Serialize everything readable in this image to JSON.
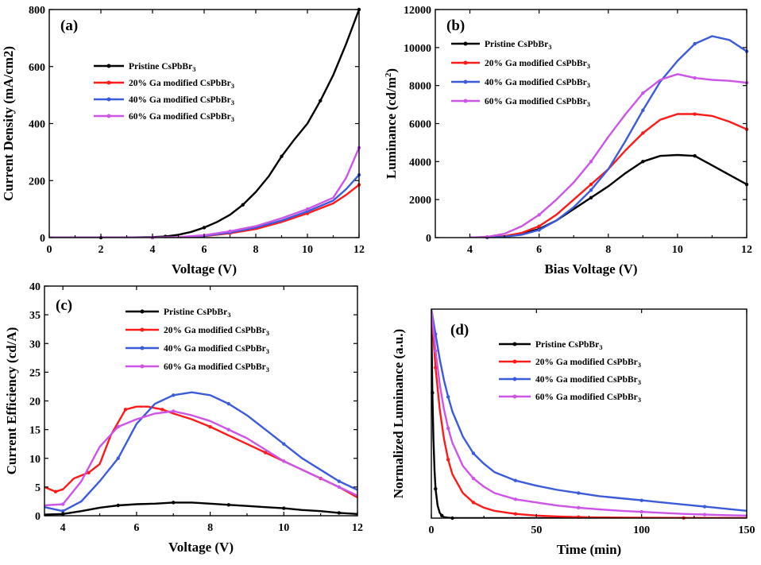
{
  "colors": {
    "pristine": "#000000",
    "ga20": "#ff1a1a",
    "ga40": "#3b5bdb",
    "ga60": "#cc55e8"
  },
  "chart_data": [
    {
      "id": "a",
      "type": "line",
      "panel_label": "(a)",
      "xlabel": "Voltage (V)",
      "ylabel": "Current Density (mA/cm2)",
      "xlim": [
        0,
        12
      ],
      "ylim": [
        0,
        800
      ],
      "xticks": [
        0,
        2,
        4,
        6,
        8,
        10,
        12
      ],
      "yticks": [
        0,
        200,
        400,
        600,
        800
      ],
      "xtick_labels": [
        "0",
        "2",
        "4",
        "6",
        "8",
        "10",
        "12"
      ],
      "ytick_labels": [
        "0",
        "200",
        "400",
        "600",
        "800"
      ],
      "legend": {
        "placement": "upper-left"
      },
      "series": [
        {
          "name_main": "Pristine CsPbBr",
          "name_sub": "3",
          "color_key": "pristine",
          "x": [
            0,
            2,
            3,
            4,
            4.5,
            5,
            5.5,
            6,
            6.5,
            7,
            7.5,
            8,
            8.5,
            9,
            9.5,
            10,
            10.5,
            11,
            11.5,
            12
          ],
          "y": [
            0,
            0,
            0.5,
            2,
            4,
            10,
            20,
            35,
            55,
            80,
            115,
            160,
            215,
            285,
            345,
            400,
            480,
            570,
            680,
            800
          ]
        },
        {
          "name_main": "20% Ga modified CsPbBr",
          "name_sub": "3",
          "color_key": "ga20",
          "x": [
            0,
            4,
            5,
            6,
            7,
            8,
            9,
            10,
            11,
            11.5,
            12
          ],
          "y": [
            0,
            0,
            1,
            5,
            15,
            30,
            55,
            85,
            120,
            150,
            185
          ]
        },
        {
          "name_main": "40% Ga modified CsPbBr",
          "name_sub": "3",
          "color_key": "ga40",
          "x": [
            0,
            4,
            5,
            6,
            7,
            8,
            9,
            10,
            11,
            11.5,
            12
          ],
          "y": [
            0,
            0,
            1,
            6,
            18,
            35,
            60,
            92,
            130,
            170,
            220
          ]
        },
        {
          "name_main": "60% Ga modified CsPbBr",
          "name_sub": "3",
          "color_key": "ga60",
          "x": [
            0,
            4,
            5,
            6,
            7,
            8,
            9,
            10,
            11,
            11.5,
            12
          ],
          "y": [
            0,
            0,
            2,
            8,
            22,
            40,
            68,
            100,
            140,
            210,
            315
          ]
        }
      ]
    },
    {
      "id": "b",
      "type": "line",
      "panel_label": "(b)",
      "xlabel": "Bias Voltage (V)",
      "ylabel_main": "Luminance (cd/m",
      "ylabel_sup": "2",
      "ylabel_tail": ")",
      "xlim": [
        3,
        12
      ],
      "ylim": [
        0,
        12000
      ],
      "xticks": [
        4,
        6,
        8,
        10,
        12
      ],
      "yticks": [
        0,
        2000,
        4000,
        6000,
        8000,
        10000,
        12000
      ],
      "xtick_labels": [
        "4",
        "6",
        "8",
        "10",
        "12"
      ],
      "ytick_labels": [
        "0",
        "2000",
        "4000",
        "6000",
        "8000",
        "10000",
        "12000"
      ],
      "legend": {
        "placement": "upper-left"
      },
      "series": [
        {
          "name_main": "Pristine CsPbBr",
          "name_sub": "3",
          "color_key": "pristine",
          "x": [
            4,
            4.5,
            5,
            5.5,
            6,
            6.5,
            7,
            7.5,
            8,
            8.5,
            9,
            9.5,
            10,
            10.5,
            11,
            11.5,
            12
          ],
          "y": [
            0,
            10,
            60,
            200,
            450,
            900,
            1500,
            2100,
            2700,
            3400,
            4000,
            4300,
            4350,
            4300,
            3800,
            3300,
            2800
          ]
        },
        {
          "name_main": "20% Ga modified CsPbBr",
          "name_sub": "3",
          "color_key": "ga20",
          "x": [
            4,
            4.5,
            5,
            5.5,
            6,
            6.5,
            7,
            7.5,
            8,
            8.5,
            9,
            9.5,
            10,
            10.5,
            11,
            11.5,
            12
          ],
          "y": [
            0,
            10,
            80,
            250,
            600,
            1200,
            2000,
            2800,
            3600,
            4600,
            5500,
            6200,
            6500,
            6500,
            6400,
            6100,
            5700
          ]
        },
        {
          "name_main": "40% Ga modified CsPbBr",
          "name_sub": "3",
          "color_key": "ga40",
          "x": [
            4,
            4.5,
            5,
            5.5,
            6,
            6.5,
            7,
            7.5,
            8,
            8.5,
            9,
            9.5,
            10,
            10.5,
            11,
            11.5,
            12
          ],
          "y": [
            0,
            5,
            50,
            150,
            400,
            900,
            1600,
            2500,
            3600,
            5100,
            6700,
            8200,
            9300,
            10200,
            10600,
            10400,
            9800
          ]
        },
        {
          "name_main": "60% Ga modified CsPbBr",
          "name_sub": "3",
          "color_key": "ga60",
          "x": [
            4,
            4.5,
            5,
            5.5,
            6,
            6.5,
            7,
            7.5,
            8,
            8.5,
            9,
            9.5,
            10,
            10.5,
            11,
            11.5,
            12
          ],
          "y": [
            0,
            40,
            200,
            600,
            1200,
            2000,
            2900,
            4000,
            5300,
            6500,
            7600,
            8300,
            8600,
            8400,
            8300,
            8250,
            8150
          ]
        }
      ]
    },
    {
      "id": "c",
      "type": "line",
      "panel_label": "(c)",
      "xlabel": "Voltage (V)",
      "ylabel": "Current Efficiency (cd/A)",
      "xlim": [
        3.5,
        12
      ],
      "ylim": [
        0,
        40
      ],
      "xticks": [
        4,
        6,
        8,
        10,
        12
      ],
      "yticks": [
        0,
        5,
        10,
        15,
        20,
        25,
        30,
        35,
        40
      ],
      "xtick_labels": [
        "4",
        "6",
        "8",
        "10",
        "12"
      ],
      "ytick_labels": [
        "0",
        "5",
        "10",
        "15",
        "20",
        "25",
        "30",
        "35",
        "40"
      ],
      "legend": {
        "placement": "upper-right"
      },
      "series": [
        {
          "name_main": "Pristine CsPbBr",
          "name_sub": "3",
          "color_key": "pristine",
          "x": [
            3.5,
            4,
            4.5,
            5,
            5.5,
            6,
            6.5,
            7,
            7.5,
            8,
            8.5,
            9,
            9.5,
            10,
            10.5,
            11,
            11.5,
            12
          ],
          "y": [
            0.2,
            0.3,
            0.8,
            1.4,
            1.8,
            2.0,
            2.1,
            2.3,
            2.3,
            2.1,
            1.9,
            1.7,
            1.5,
            1.3,
            1.0,
            0.8,
            0.5,
            0.3
          ]
        },
        {
          "name_main": "20% Ga modified CsPbBr",
          "name_sub": "3",
          "color_key": "ga20",
          "x": [
            3.5,
            3.8,
            4.0,
            4.3,
            4.7,
            5.0,
            5.3,
            5.7,
            6.0,
            6.3,
            6.7,
            7.0,
            7.5,
            8,
            8.5,
            9,
            9.5,
            10,
            10.5,
            11,
            11.5,
            12
          ],
          "y": [
            5.0,
            4.2,
            4.6,
            6.5,
            7.5,
            9.0,
            14.0,
            18.5,
            19.0,
            19.0,
            18.5,
            17.8,
            16.8,
            15.5,
            14.0,
            12.5,
            11.0,
            9.5,
            8.0,
            6.5,
            5.0,
            3.2
          ]
        },
        {
          "name_main": "40% Ga modified CsPbBr",
          "name_sub": "3",
          "color_key": "ga40",
          "x": [
            3.5,
            4.0,
            4.5,
            5.0,
            5.5,
            6.0,
            6.5,
            7.0,
            7.5,
            8,
            8.5,
            9,
            9.5,
            10,
            10.5,
            11,
            11.5,
            12
          ],
          "y": [
            1.5,
            0.8,
            2.5,
            6.0,
            10.0,
            16.0,
            19.5,
            21.0,
            21.5,
            21.0,
            19.5,
            17.5,
            15.0,
            12.5,
            10.0,
            8.0,
            6.0,
            4.5
          ]
        },
        {
          "name_main": "60% Ga modified CsPbBr",
          "name_sub": "3",
          "color_key": "ga60",
          "x": [
            3.5,
            4.0,
            4.5,
            5.0,
            5.5,
            6.0,
            6.5,
            7.0,
            7.5,
            8,
            8.5,
            9,
            9.5,
            10,
            10.5,
            11,
            11.5,
            12
          ],
          "y": [
            1.8,
            2.0,
            6.0,
            12.0,
            15.5,
            16.8,
            17.8,
            18.2,
            17.5,
            16.5,
            15.0,
            13.5,
            11.5,
            9.5,
            8.0,
            6.5,
            5.0,
            3.5
          ]
        }
      ]
    },
    {
      "id": "d",
      "type": "line",
      "panel_label": "(d)",
      "xlabel": "Time (min)",
      "ylabel": "Normalized Luminance (a.u.)",
      "xlim": [
        0,
        150
      ],
      "ylim": [
        0,
        1
      ],
      "xticks": [
        0,
        50,
        100,
        150
      ],
      "yticks": [],
      "xtick_labels": [
        "0",
        "50",
        "100",
        "150"
      ],
      "ytick_labels": [],
      "legend": {
        "placement": "upper-right"
      },
      "series": [
        {
          "name_main": "Pristine CsPbBr",
          "name_sub": "3",
          "color_key": "pristine",
          "x": [
            0,
            0.5,
            1,
            1.5,
            2,
            3,
            4,
            5,
            6,
            8,
            10,
            150
          ],
          "y": [
            0.95,
            0.6,
            0.38,
            0.23,
            0.14,
            0.06,
            0.025,
            0.012,
            0.005,
            0.002,
            0,
            0
          ]
        },
        {
          "name_main": "20% Ga modified CsPbBr",
          "name_sub": "3",
          "color_key": "ga20",
          "x": [
            0,
            2,
            4,
            6,
            8,
            10,
            15,
            20,
            25,
            30,
            40,
            50,
            60,
            70,
            80,
            100,
            120,
            150
          ],
          "y": [
            1.0,
            0.72,
            0.52,
            0.38,
            0.28,
            0.21,
            0.12,
            0.075,
            0.05,
            0.035,
            0.02,
            0.012,
            0.008,
            0.005,
            0.003,
            0.002,
            0.001,
            0
          ]
        },
        {
          "name_main": "40% Ga modified CsPbBr",
          "name_sub": "3",
          "color_key": "ga40",
          "x": [
            0,
            2,
            4,
            6,
            8,
            10,
            15,
            20,
            25,
            30,
            40,
            50,
            60,
            70,
            80,
            90,
            100,
            110,
            120,
            130,
            140,
            150
          ],
          "y": [
            1.0,
            0.88,
            0.76,
            0.66,
            0.58,
            0.51,
            0.39,
            0.31,
            0.26,
            0.22,
            0.18,
            0.155,
            0.135,
            0.12,
            0.105,
            0.095,
            0.085,
            0.075,
            0.065,
            0.055,
            0.045,
            0.035
          ]
        },
        {
          "name_main": "60% Ga modified CsPbBr",
          "name_sub": "3",
          "color_key": "ga60",
          "x": [
            0,
            2,
            4,
            6,
            8,
            10,
            15,
            20,
            25,
            30,
            40,
            50,
            60,
            70,
            80,
            90,
            100,
            110,
            120,
            130,
            140,
            150
          ],
          "y": [
            1.0,
            0.8,
            0.64,
            0.52,
            0.43,
            0.36,
            0.25,
            0.19,
            0.15,
            0.12,
            0.09,
            0.075,
            0.06,
            0.05,
            0.042,
            0.035,
            0.03,
            0.025,
            0.02,
            0.017,
            0.014,
            0.012
          ]
        }
      ]
    }
  ]
}
